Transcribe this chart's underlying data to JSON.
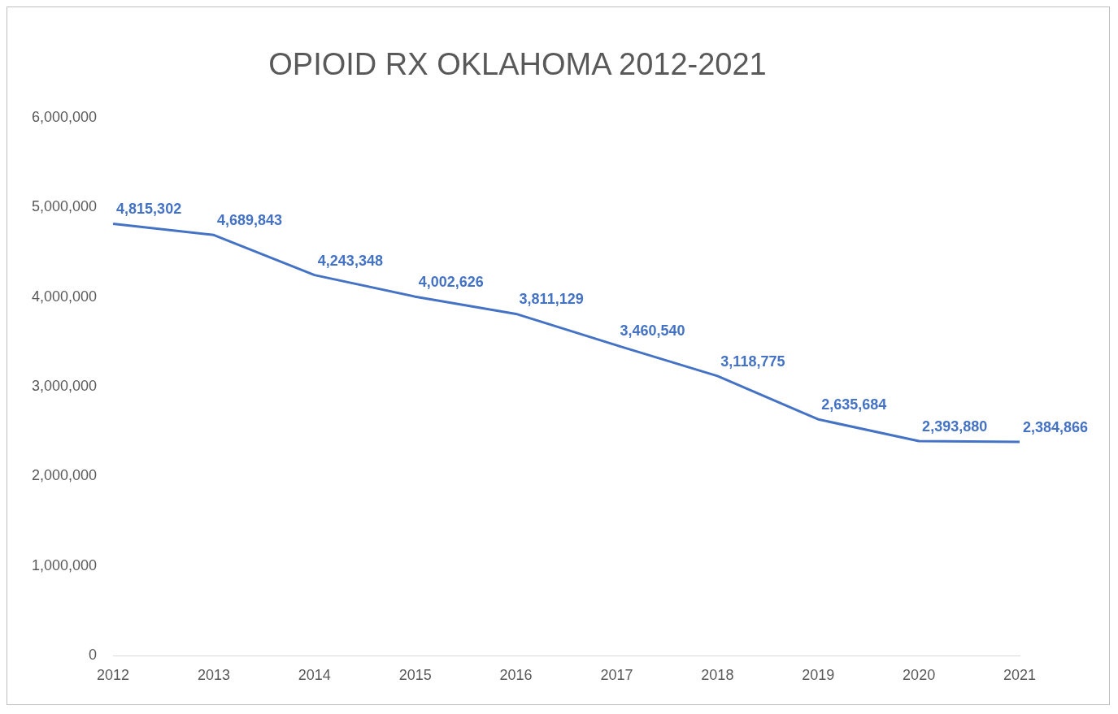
{
  "chart_data": {
    "type": "line",
    "title": "OPIOID RX OKLAHOMA 2012-2021",
    "categories": [
      "2012",
      "2013",
      "2014",
      "2015",
      "2016",
      "2017",
      "2018",
      "2019",
      "2020",
      "2021"
    ],
    "series": [
      {
        "color": "#4472c4",
        "values": [
          4815302,
          4689843,
          4243348,
          4002626,
          3811129,
          3460540,
          3118775,
          2635684,
          2393880,
          2384866
        ],
        "value_labels": [
          "4,815,302",
          "4,689,843",
          "4,243,348",
          "4,002,626",
          "3,811,129",
          "3,460,540",
          "3,118,775",
          "2,635,684",
          "2,393,880",
          "2,384,866"
        ]
      }
    ],
    "ylim": [
      0,
      6000000
    ],
    "yticks": [
      {
        "value": 0,
        "label": "0"
      },
      {
        "value": 1000000,
        "label": "1,000,000"
      },
      {
        "value": 2000000,
        "label": "2,000,000"
      },
      {
        "value": 3000000,
        "label": "3,000,000"
      },
      {
        "value": 4000000,
        "label": "4,000,000"
      },
      {
        "value": 5000000,
        "label": "5,000,000"
      },
      {
        "value": 6000000,
        "label": "6,000,000"
      }
    ],
    "grid": false,
    "legend": false,
    "marker": "none",
    "line_style": "solid"
  }
}
